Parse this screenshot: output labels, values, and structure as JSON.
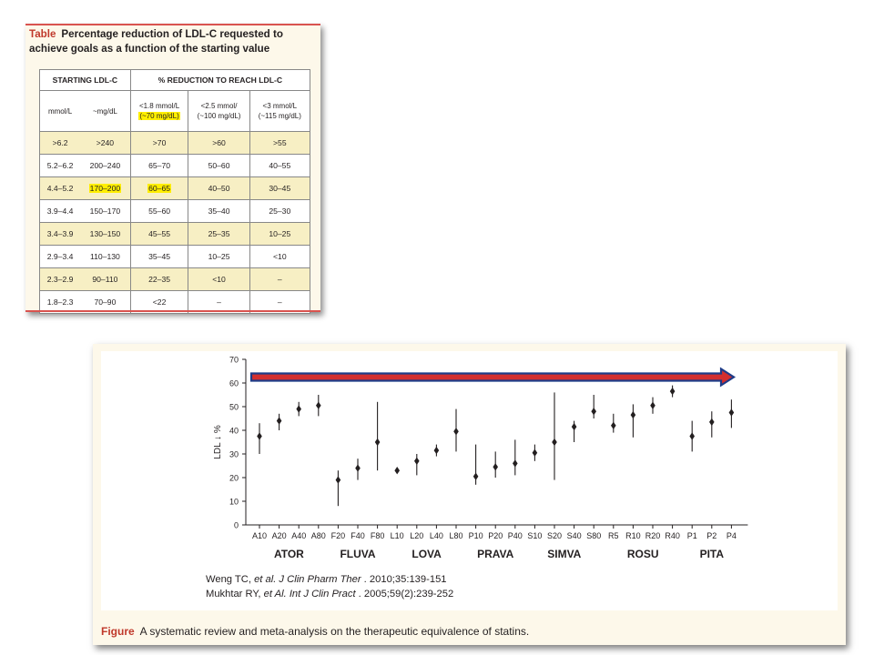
{
  "table": {
    "label": "Table",
    "caption": "Percentage reduction of LDL-C requested to achieve goals as a function of the starting value",
    "header_left": "STARTING LDL-C",
    "header_right": "% REDUCTION TO REACH LDL-C",
    "unit_mmol": "mmol/L",
    "unit_mg": "~mg/dL",
    "goal_1_line1": "<1.8 mmol/L",
    "goal_1_line2": "(~70 mg/dL)",
    "goal_2_line1": "<2.5 mmol/",
    "goal_2_line2": "(~100 mg/dL)",
    "goal_3_line1": "<3 mmol/L",
    "goal_3_line2": "(~115 mg/dL)",
    "rows": [
      {
        "mmol": ">6.2",
        "mg": ">240",
        "g1": ">70",
        "g2": ">60",
        "g3": ">55"
      },
      {
        "mmol": "5.2–6.2",
        "mg": "200–240",
        "g1": "65–70",
        "g2": "50–60",
        "g3": "40–55"
      },
      {
        "mmol": "4.4–5.2",
        "mg": "170–200",
        "g1": "60–65",
        "g2": "40–50",
        "g3": "30–45"
      },
      {
        "mmol": "3.9–4.4",
        "mg": "150–170",
        "g1": "55–60",
        "g2": "35–40",
        "g3": "25–30"
      },
      {
        "mmol": "3.4–3.9",
        "mg": "130–150",
        "g1": "45–55",
        "g2": "25–35",
        "g3": "10–25"
      },
      {
        "mmol": "2.9–3.4",
        "mg": "110–130",
        "g1": "35–45",
        "g2": "10–25",
        "g3": "<10"
      },
      {
        "mmol": "2.3–2.9",
        "mg": "90–110",
        "g1": "22–35",
        "g2": "<10",
        "g3": "–"
      },
      {
        "mmol": "1.8–2.3",
        "mg": "70–90",
        "g1": "<22",
        "g2": "–",
        "g3": "–"
      }
    ]
  },
  "figure": {
    "label": "Figure",
    "caption": "A systematic review and meta-analysis on the therapeutic equivalence of statins.",
    "ref1_authors": "Weng TC, ",
    "ref1_etal": "et al. J Clin Pharm Ther",
    "ref1_rest": " . 2010;35:139-151",
    "ref2_authors": "Mukhtar RY, ",
    "ref2_etal": "et Al. Int J Clin Pract",
    "ref2_rest": " . 2005;59(2):239-252"
  },
  "chart_data": {
    "type": "scatter",
    "ylabel": "LDL ↓ %",
    "xlabel": "",
    "ylim": [
      0,
      70
    ],
    "yticks": [
      0,
      10,
      20,
      30,
      40,
      50,
      60,
      70
    ],
    "grid": false,
    "categories": [
      "A10",
      "A20",
      "A40",
      "A80",
      "F20",
      "F40",
      "F80",
      "L10",
      "L20",
      "L40",
      "L80",
      "P10",
      "P20",
      "P40",
      "S10",
      "S20",
      "S40",
      "S80",
      "R5",
      "R10",
      "R20",
      "R40",
      "P1",
      "P2",
      "P4"
    ],
    "values": [
      37.5,
      44,
      49,
      50.5,
      19,
      24,
      35,
      23,
      27,
      31.5,
      39.5,
      20.5,
      24.5,
      26,
      30.5,
      35,
      41.5,
      48,
      42,
      46.5,
      50.5,
      56.5,
      37.5,
      43.5,
      47.5
    ],
    "lower": [
      30,
      40,
      46,
      46,
      8,
      19,
      23,
      22,
      21,
      29,
      31,
      17,
      20,
      21,
      27,
      19,
      35,
      45,
      39,
      37,
      47,
      54,
      31,
      37,
      41
    ],
    "upper": [
      43,
      47,
      52,
      55,
      23,
      28,
      52,
      24,
      30,
      34,
      49,
      34,
      31,
      36,
      34,
      56,
      44,
      55,
      47,
      51,
      54,
      59,
      44,
      48,
      53
    ],
    "groups": [
      {
        "name": "ATOR",
        "members": [
          "A10",
          "A20",
          "A40",
          "A80"
        ]
      },
      {
        "name": "FLUVA",
        "members": [
          "F20",
          "F40",
          "F80"
        ]
      },
      {
        "name": "LOVA",
        "members": [
          "L10",
          "L20",
          "L40",
          "L80"
        ]
      },
      {
        "name": "PRAVA",
        "members": [
          "P10",
          "P20",
          "P40"
        ]
      },
      {
        "name": "SIMVA",
        "members": [
          "S10",
          "S20",
          "S40",
          "S80"
        ]
      },
      {
        "name": "ROSU",
        "members": [
          "R5",
          "R10",
          "R20",
          "R40"
        ]
      },
      {
        "name": "PITA",
        "members": [
          "P1",
          "P2",
          "P4"
        ]
      }
    ],
    "threshold_arrow": {
      "y": 62.5,
      "color": "#d32f2f",
      "outline": "#1f3c88"
    },
    "marker_color": "#231f20"
  }
}
